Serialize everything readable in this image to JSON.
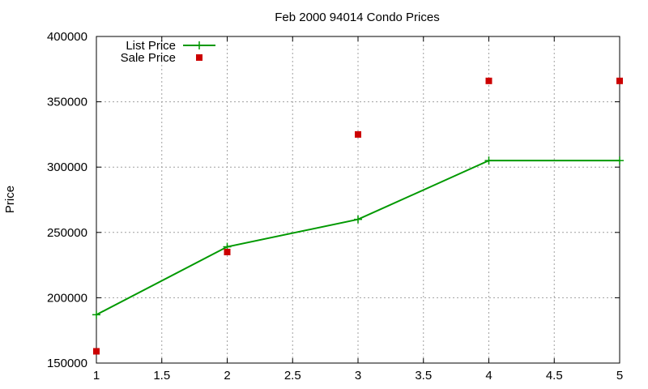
{
  "chart_data": {
    "type": "line",
    "title": "Feb 2000 94014 Condo Prices",
    "xlabel": "",
    "ylabel": "Price",
    "xlim": [
      1,
      5
    ],
    "ylim": [
      150000,
      400000
    ],
    "x_ticks": [
      "1",
      "1.5",
      "2",
      "2.5",
      "3",
      "3.5",
      "4",
      "4.5",
      "5"
    ],
    "y_ticks": [
      "150000",
      "200000",
      "250000",
      "300000",
      "350000",
      "400000"
    ],
    "grid": true,
    "legend_position": "top-left",
    "series": [
      {
        "name": "List Price",
        "style": "lines+points",
        "marker": "plus",
        "color": "#009900",
        "x": [
          1,
          2,
          3,
          4,
          5
        ],
        "y": [
          187000,
          239000,
          260000,
          305000,
          305000
        ]
      },
      {
        "name": "Sale Price",
        "style": "points",
        "marker": "square",
        "color": "#cc0000",
        "x": [
          1,
          2,
          3,
          4,
          5
        ],
        "y": [
          159000,
          235000,
          325000,
          366000,
          366000
        ]
      }
    ]
  }
}
